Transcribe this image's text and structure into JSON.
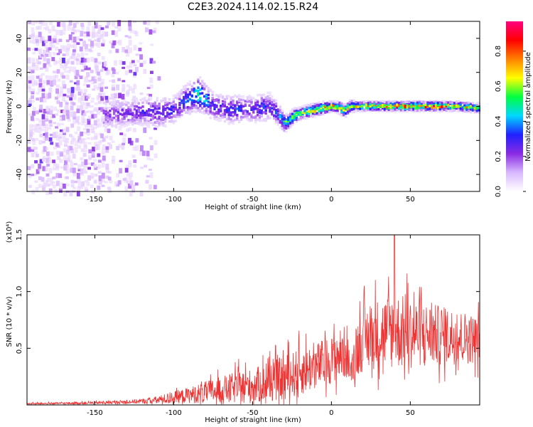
{
  "title": "C2E3.2024.114.02.15.R24",
  "chart_data": [
    {
      "type": "heatmap",
      "xlabel": "Height of straight line (km)",
      "ylabel": "Frequency (Hz)",
      "xlim": [
        -193,
        94
      ],
      "ylim": [
        -50,
        50
      ],
      "xticks": [
        -150,
        -100,
        -50,
        0,
        50
      ],
      "yticks": [
        -40,
        -20,
        0,
        20,
        40
      ],
      "colorbar": {
        "label": "Normalized spectral amplitude",
        "range": [
          0.0,
          0.97
        ],
        "ticks": [
          0.0,
          0.2,
          0.4,
          0.6,
          0.8
        ],
        "colors": [
          "#ffffff",
          "#d9b8ff",
          "#8a2be2",
          "#2020ff",
          "#00d8ff",
          "#00ff40",
          "#ffff00",
          "#ff8000",
          "#ff0000",
          "#ff0080"
        ]
      },
      "noise_region_x": [
        -193,
        -110
      ],
      "ridge": {
        "x": [
          -140,
          -130,
          -120,
          -110,
          -100,
          -95,
          -90,
          -85,
          -80,
          -75,
          -70,
          -65,
          -60,
          -55,
          -50,
          -45,
          -40,
          -35,
          -32,
          -30,
          -28,
          -25,
          -20,
          -15,
          -10,
          -5,
          0,
          5,
          8,
          10,
          12,
          15,
          20,
          30,
          40,
          50,
          60,
          70,
          80,
          90
        ],
        "y": [
          -5,
          -4,
          -3,
          -4,
          -2,
          2,
          5,
          7,
          4,
          0,
          -1,
          -2,
          -2,
          -1,
          -2,
          -1,
          0,
          -4,
          -8,
          -10,
          -9,
          -6,
          -4,
          -3,
          -2,
          -1,
          0,
          -1,
          -3,
          -1,
          0,
          0,
          0,
          0,
          0,
          0,
          0,
          0,
          0,
          -1
        ],
        "amplitude": [
          0.25,
          0.25,
          0.3,
          0.3,
          0.3,
          0.35,
          0.4,
          0.55,
          0.45,
          0.3,
          0.3,
          0.35,
          0.35,
          0.3,
          0.3,
          0.35,
          0.3,
          0.35,
          0.45,
          0.6,
          0.6,
          0.65,
          0.7,
          0.75,
          0.75,
          0.75,
          0.8,
          0.75,
          0.7,
          0.7,
          0.7,
          0.75,
          0.8,
          0.85,
          0.85,
          0.9,
          0.9,
          0.85,
          0.75,
          0.7
        ],
        "width_hz": [
          10,
          10,
          10,
          11,
          10,
          11,
          11,
          12,
          11,
          10,
          10,
          10,
          10,
          9,
          10,
          10,
          10,
          8,
          7,
          6,
          5,
          5,
          4,
          4,
          4,
          4,
          3,
          4,
          4,
          4,
          4,
          3,
          3,
          3,
          3,
          3,
          3,
          3,
          3,
          3
        ]
      }
    },
    {
      "type": "line",
      "xlabel": "Height of straight line (km)",
      "ylabel": "SNR (10 * v/v)",
      "multiplier": "(x10⁴)",
      "xlim": [
        -193,
        94
      ],
      "ylim": [
        0.0,
        1.5
      ],
      "xticks": [
        -150,
        -100,
        -50,
        0,
        50
      ],
      "yticks": [
        0.5,
        1.0,
        1.5
      ],
      "color": "#ee3333",
      "envelope": {
        "x": [
          -193,
          -160,
          -140,
          -120,
          -110,
          -100,
          -90,
          -80,
          -70,
          -60,
          -50,
          -40,
          -30,
          -20,
          -10,
          0,
          10,
          12,
          15,
          20,
          30,
          40,
          50,
          60,
          70,
          80,
          94
        ],
        "base": [
          0.01,
          0.015,
          0.02,
          0.03,
          0.04,
          0.06,
          0.08,
          0.1,
          0.12,
          0.14,
          0.15,
          0.18,
          0.22,
          0.27,
          0.32,
          0.38,
          0.45,
          0.25,
          0.45,
          0.55,
          0.6,
          0.62,
          0.6,
          0.6,
          0.58,
          0.58,
          0.55
        ],
        "spread": [
          0.01,
          0.015,
          0.02,
          0.03,
          0.05,
          0.08,
          0.1,
          0.14,
          0.17,
          0.2,
          0.22,
          0.25,
          0.28,
          0.3,
          0.3,
          0.3,
          0.35,
          0.1,
          0.35,
          0.4,
          0.45,
          0.48,
          0.45,
          0.4,
          0.38,
          0.35,
          0.3
        ]
      },
      "peak": {
        "x": 40,
        "y": 1.5
      }
    }
  ]
}
